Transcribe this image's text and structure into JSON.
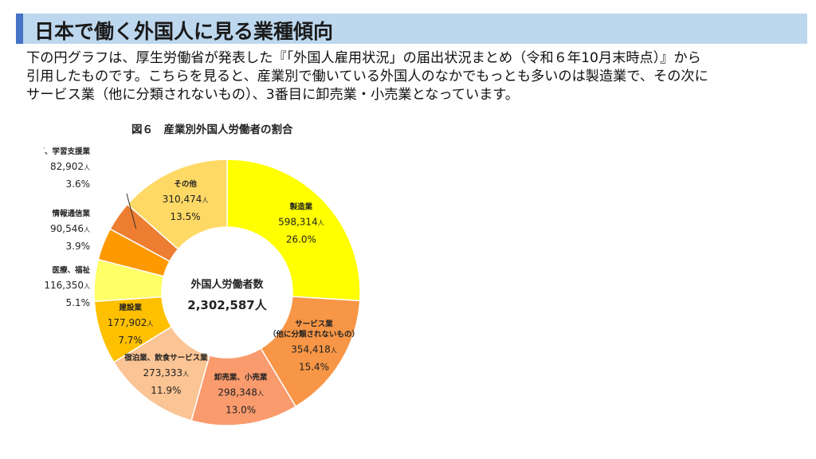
{
  "header": {
    "title": "日本で働く外国人に見る業種傾向"
  },
  "intro": {
    "line1": "下の円グラフは、厚生労働省が発表した『「外国人雇用状況」の届出状況まとめ（令和６年10月末時点）』から",
    "line2": "引用したものです。こちらを見ると、産業別で働いている外国人のなかでもっとも多いのは製造業で、その次に",
    "line3": "サービス業（他に分類されないもの）、3番目に卸売業・小売業となっています。"
  },
  "chart_data": {
    "type": "pie",
    "title": "図６　産業別外国人労働者の割合",
    "center_label": "外国人労働者数",
    "center_value": "2,302,587人",
    "unit": "人",
    "slices": [
      {
        "name": "製造業",
        "value": 598314,
        "value_label": "598,314",
        "percent": 26.0,
        "percent_label": "26.0%",
        "color": "#ffff00"
      },
      {
        "name": "サービス業",
        "name2": "（他に分類されないもの）",
        "value": 354418,
        "value_label": "354,418",
        "percent": 15.4,
        "percent_label": "15.4%",
        "color": "#f79646"
      },
      {
        "name": "卸売業、小売業",
        "value": 298348,
        "value_label": "298,348",
        "percent": 13.0,
        "percent_label": "13.0%",
        "color": "#fa9b6e"
      },
      {
        "name": "宿泊業、飲食サービス業",
        "value": 273333,
        "value_label": "273,333",
        "percent": 11.9,
        "percent_label": "11.9%",
        "color": "#fbc494"
      },
      {
        "name": "建設業",
        "value": 177902,
        "value_label": "177,902",
        "percent": 7.7,
        "percent_label": "7.7%",
        "color": "#ffc000"
      },
      {
        "name": "医療、福祉",
        "value": 116350,
        "value_label": "116,350",
        "percent": 5.1,
        "percent_label": "5.1%",
        "color": "#ffff66"
      },
      {
        "name": "情報通信業",
        "value": 90546,
        "value_label": "90,546",
        "percent": 3.9,
        "percent_label": "3.9%",
        "color": "#ff9900"
      },
      {
        "name": "教育、学習支援業",
        "value": 82902,
        "value_label": "82,902",
        "percent": 3.6,
        "percent_label": "3.6%",
        "color": "#ed7d31"
      },
      {
        "name": "その他",
        "value": 310474,
        "value_label": "310,474",
        "percent": 13.5,
        "percent_label": "13.5%",
        "color": "#ffd966"
      }
    ]
  },
  "colors": {
    "title_bar_bg": "#bdd7ee",
    "title_bar_accent": "#4472c4"
  }
}
